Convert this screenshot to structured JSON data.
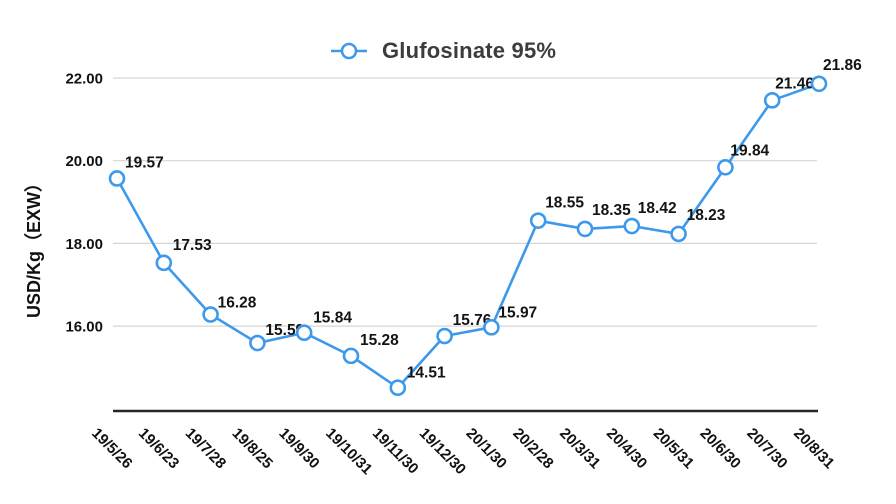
{
  "legend": {
    "label": "Glufosinate 95%"
  },
  "y_axis": {
    "title": "USD/Kg（EXW）",
    "tick_labels": [
      "22.00",
      "20.00",
      "18.00",
      "16.00"
    ]
  },
  "chart_data": {
    "type": "line",
    "title": "Glufosinate 95%",
    "ylabel": "USD/Kg（EXW）",
    "xlabel": "",
    "categories": [
      "19/5/26",
      "19/6/23",
      "19/7/28",
      "19/8/25",
      "19/9/30",
      "19/10/31",
      "19/11/30",
      "19/12/30",
      "20/1/30",
      "20/2/28",
      "20/3/31",
      "20/4/30",
      "20/5/31",
      "20/6/30",
      "20/7/30",
      "20/8/31"
    ],
    "series": [
      {
        "name": "Glufosinate 95%",
        "values": [
          19.57,
          17.53,
          16.28,
          15.59,
          15.84,
          15.28,
          14.51,
          15.76,
          15.97,
          18.55,
          18.35,
          18.42,
          18.23,
          19.84,
          21.46,
          21.86
        ]
      }
    ],
    "data_labels": [
      "19.57",
      "17.53",
      "16.28",
      "15.59",
      "15.84",
      "15.28",
      "14.51",
      "15.76",
      "15.97",
      "18.55",
      "18.35",
      "18.42",
      "18.23",
      "19.84",
      "21.46",
      "21.86"
    ],
    "yticks": [
      22,
      20,
      18,
      16
    ],
    "ylim": [
      13.95,
      22.05
    ],
    "grid": true,
    "legend_position": "top-center",
    "marker": "open-circle",
    "colors": {
      "line": "#3D99EB",
      "marker_fill": "#FFFFFF",
      "grid": "#D6D6D6",
      "axis": "#262626",
      "text": "#111111",
      "legend_text": "#3C3C3C"
    }
  }
}
